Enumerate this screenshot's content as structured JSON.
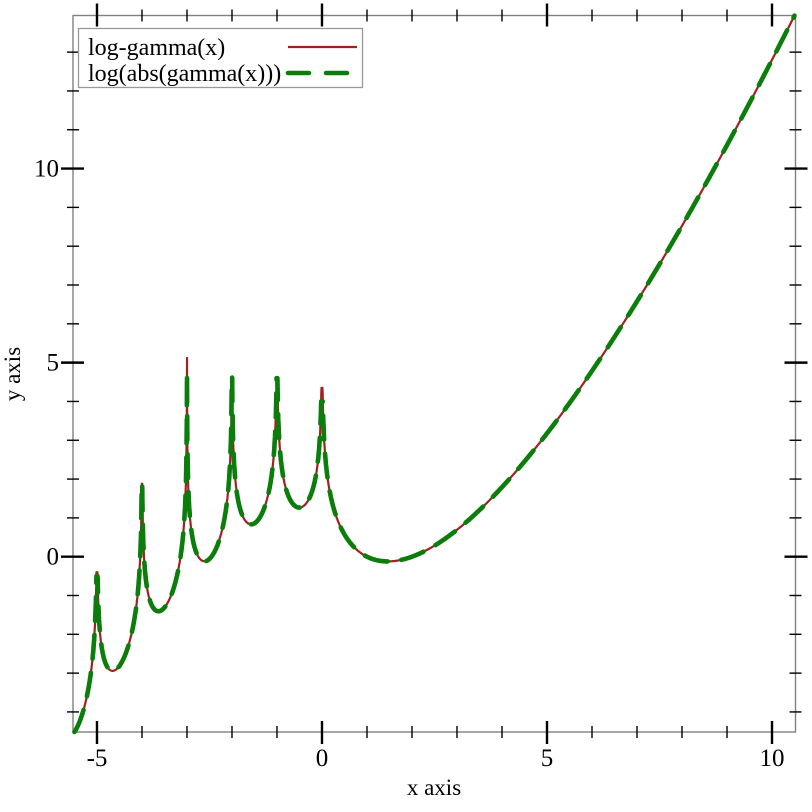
{
  "figure": {
    "background": "#ffffff",
    "description": "Plot of log-gamma(x) and log(abs(gamma(x)))"
  },
  "axes": {
    "frame_color": "#808080",
    "tick_color": "#000000",
    "x": {
      "label": "x axis",
      "major_ticks": [
        -5,
        0,
        5,
        10
      ],
      "major_labels": [
        "-5",
        "0",
        "5",
        "10"
      ],
      "minor_ticks": [
        -4,
        -3,
        -2,
        -1,
        1,
        2,
        3,
        4,
        6,
        7,
        8,
        9
      ]
    },
    "y": {
      "label": "y axis",
      "major_ticks": [
        0,
        5,
        10
      ],
      "major_labels": [
        "0",
        "5",
        "10"
      ],
      "minor_ticks": [
        -4,
        -3,
        -2,
        -1,
        1,
        2,
        3,
        4,
        6,
        7,
        8,
        9,
        11,
        12,
        13
      ]
    }
  },
  "legend": {
    "position": "top-left",
    "entries": [
      {
        "label": "log-gamma(x)",
        "color": "#9e2222",
        "style": "solid",
        "width": 2.2
      },
      {
        "label": "log(abs(gamma(x)))",
        "color": "#0a7d0a",
        "style": "long-dash",
        "width": 4.6
      }
    ]
  },
  "chart_data": {
    "type": "line",
    "title": "",
    "xlabel": "x axis",
    "ylabel": "y axis",
    "xlim": [
      -5.533,
      10.522
    ],
    "ylim": [
      -4.517,
      13.944
    ],
    "grid": false,
    "legend_position": "top-left",
    "series": [
      {
        "name": "log-gamma(x)",
        "function": "log|Gamma(x)|",
        "domain": [
          -5.5,
          10.5
        ],
        "color": "#9e2222",
        "style": "solid",
        "width": 2.2
      },
      {
        "name": "log(abs(gamma(x)))",
        "function": "log|Gamma(x)|",
        "domain": [
          -5.5,
          10.5
        ],
        "color": "#0a7d0a",
        "style": "long-dash",
        "width": 4.6
      }
    ],
    "poles": [
      {
        "x": -5,
        "peak": -0.4,
        "peak_dashed": -0.5
      },
      {
        "x": -4,
        "peak": 1.88,
        "peak_dashed": 1.88
      },
      {
        "x": -3,
        "peak": 5.12,
        "peak_dashed": 4.74
      },
      {
        "x": -2,
        "peak": 4.63,
        "peak_dashed": 4.63
      },
      {
        "x": -1,
        "peak": 4.6,
        "peak_dashed": 4.6
      },
      {
        "x": 0,
        "peak": 4.35,
        "peak_dashed": 4.0
      }
    ],
    "samples": [
      [
        -5.5,
        -4.52
      ],
      [
        -5,
        -0.4
      ],
      [
        -4.5,
        -2.81
      ],
      [
        -4,
        1.88
      ],
      [
        -3.5,
        -1.31
      ],
      [
        -3,
        5.12
      ],
      [
        -2.5,
        -0.06
      ],
      [
        -2,
        4.63
      ],
      [
        -1.5,
        0.86
      ],
      [
        -1,
        4.6
      ],
      [
        -0.5,
        1.27
      ],
      [
        0,
        4.35
      ],
      [
        0.5,
        0.57
      ],
      [
        1,
        0
      ],
      [
        1.5,
        -0.12
      ],
      [
        2,
        0
      ],
      [
        2.5,
        0.28
      ],
      [
        3,
        0.69
      ],
      [
        3.5,
        1.2
      ],
      [
        4,
        1.79
      ],
      [
        4.5,
        2.45
      ],
      [
        5,
        3.18
      ],
      [
        5.5,
        3.96
      ],
      [
        6,
        4.79
      ],
      [
        6.5,
        5.66
      ],
      [
        7,
        6.58
      ],
      [
        7.5,
        7.53
      ],
      [
        8,
        8.53
      ],
      [
        8.5,
        9.55
      ],
      [
        9,
        10.6
      ],
      [
        9.5,
        11.69
      ],
      [
        10,
        12.8
      ],
      [
        10.5,
        13.94
      ]
    ],
    "notes": "Both series depict the same curve log|Gamma(x)|; poles at x=0,-1,-2,-3,-4,-5 appear as finite sampled spikes."
  }
}
